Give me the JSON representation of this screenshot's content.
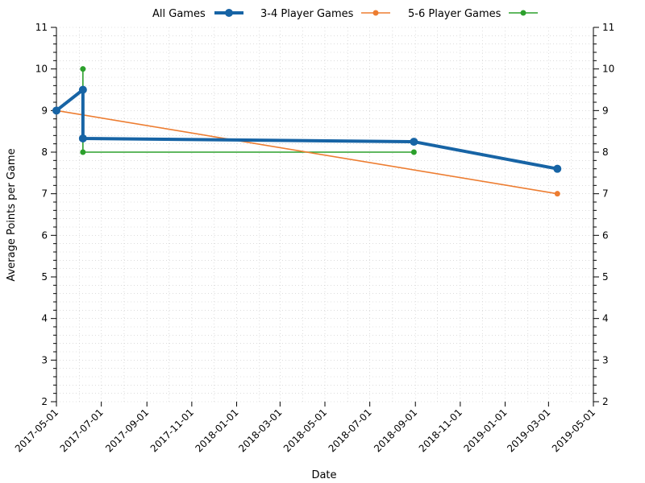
{
  "chart_data": {
    "type": "line",
    "title": "",
    "xlabel": "Date",
    "ylabel": "Average Points per Game",
    "ylim": [
      2,
      11
    ],
    "xlim": [
      "2017-05-01",
      "2019-05-01"
    ],
    "yticks": [
      "2",
      "3",
      "4",
      "5",
      "6",
      "7",
      "8",
      "9",
      "10",
      "11"
    ],
    "xticks": [
      "2017-05-01",
      "2017-07-01",
      "2017-09-01",
      "2017-11-01",
      "2018-01-01",
      "2018-03-01",
      "2018-05-01",
      "2018-07-01",
      "2018-09-01",
      "2018-11-01",
      "2019-01-01",
      "2019-03-01",
      "2019-05-01"
    ],
    "grid": true,
    "legend_position": "top-center",
    "series": [
      {
        "name": "All Games",
        "color": "#1764a5",
        "x": [
          "2017-05-01",
          "2017-06-06",
          "2017-06-06",
          "2018-08-30",
          "2019-03-13"
        ],
        "y": [
          9.0,
          9.5,
          8.33,
          8.25,
          7.6
        ]
      },
      {
        "name": "3-4 Player Games",
        "color": "#ed7d31",
        "x": [
          "2017-05-01",
          "2019-03-13"
        ],
        "y": [
          9.0,
          7.0
        ]
      },
      {
        "name": "5-6 Player Games",
        "color": "#2ca02c",
        "x": [
          "2017-06-06",
          "2017-06-06",
          "2018-08-30"
        ],
        "y": [
          10.0,
          8.0,
          8.0
        ]
      }
    ]
  }
}
